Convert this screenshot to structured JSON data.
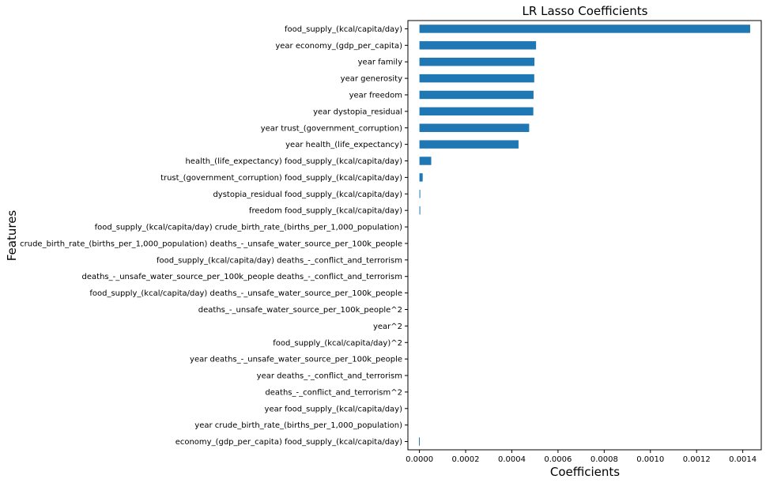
{
  "chart_data": {
    "type": "bar",
    "orientation": "horizontal",
    "title": "LR Lasso Coefficients",
    "xlabel": "Coefficients",
    "ylabel": "Features",
    "xlim": [
      -5e-05,
      0.00148
    ],
    "xticks": [
      0.0,
      0.0002,
      0.0004,
      0.0006,
      0.0008,
      0.001,
      0.0012,
      0.0014
    ],
    "xtick_labels": [
      "0.0000",
      "0.0002",
      "0.0004",
      "0.0006",
      "0.0008",
      "0.0010",
      "0.0012",
      "0.0014"
    ],
    "grid": false,
    "bar_color": "#1f77b4",
    "categories": [
      "food_supply_(kcal/capita/day)",
      "year economy_(gdp_per_capita)",
      "year family",
      "year generosity",
      "year freedom",
      "year dystopia_residual",
      "year trust_(government_corruption)",
      "year health_(life_expectancy)",
      "health_(life_expectancy) food_supply_(kcal/capita/day)",
      "trust_(government_corruption) food_supply_(kcal/capita/day)",
      "dystopia_residual food_supply_(kcal/capita/day)",
      "freedom food_supply_(kcal/capita/day)",
      "food_supply_(kcal/capita/day) crude_birth_rate_(births_per_1,000_population)",
      "crude_birth_rate_(births_per_1,000_population) deaths_-_unsafe_water_source_per_100k_people",
      "food_supply_(kcal/capita/day) deaths_-_conflict_and_terrorism",
      "deaths_-_unsafe_water_source_per_100k_people deaths_-_conflict_and_terrorism",
      "food_supply_(kcal/capita/day) deaths_-_unsafe_water_source_per_100k_people",
      "deaths_-_unsafe_water_source_per_100k_people^2",
      "year^2",
      "food_supply_(kcal/capita/day)^2",
      "year deaths_-_unsafe_water_source_per_100k_people",
      "year deaths_-_conflict_and_terrorism",
      "deaths_-_conflict_and_terrorism^2",
      "year food_supply_(kcal/capita/day)",
      "year crude_birth_rate_(births_per_1,000_population)",
      "economy_(gdp_per_capita) food_supply_(kcal/capita/day)"
    ],
    "values": [
      0.001432,
      0.000505,
      0.000498,
      0.000497,
      0.000494,
      0.000493,
      0.000475,
      0.000429,
      5.1e-05,
      1.4e-05,
      3e-06,
      3e-06,
      0.0,
      0.0,
      0.0,
      0.0,
      0.0,
      0.0,
      0.0,
      0.0,
      0.0,
      0.0,
      0.0,
      0.0,
      0.0,
      -2e-06
    ]
  }
}
